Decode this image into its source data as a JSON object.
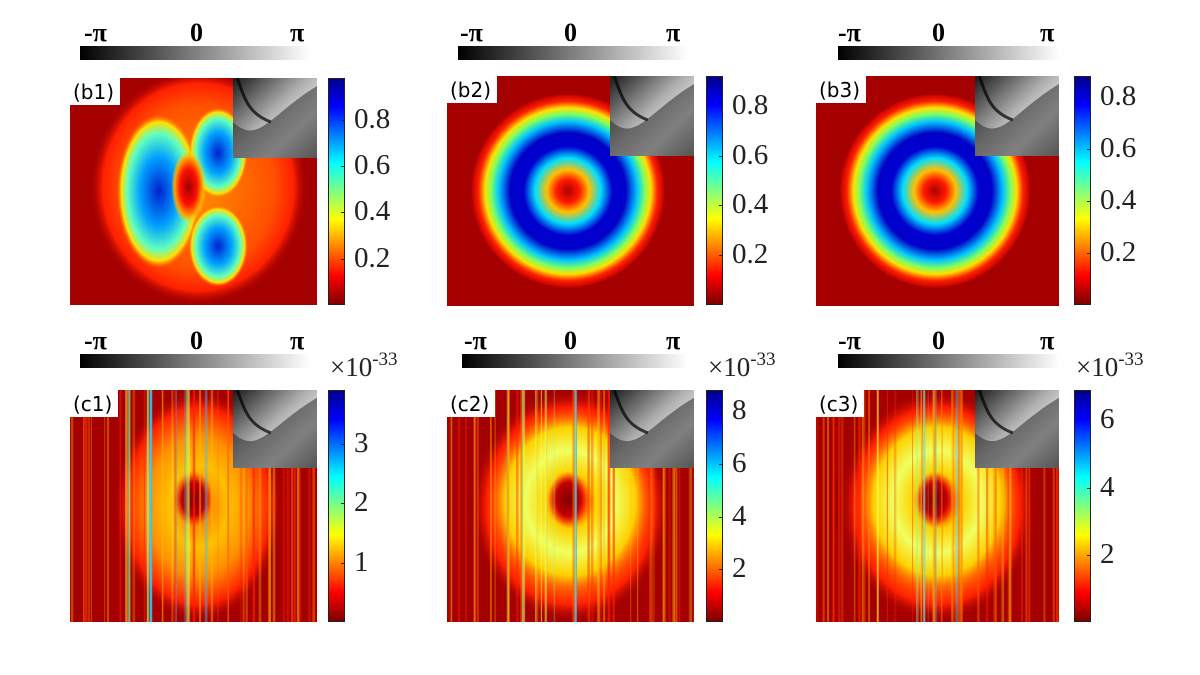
{
  "phase_labels": {
    "min": "-π",
    "mid": "0",
    "max": "π"
  },
  "jet_colors": [
    "#7f0000",
    "#ff0000",
    "#ff8000",
    "#ffff00",
    "#80ff80",
    "#00ffff",
    "#0080ff",
    "#0000ff",
    "#00008f"
  ],
  "chart_data": [
    {
      "type": "heatmap",
      "label": "(b1)",
      "pattern": "double-lobe",
      "colorbar_ticks": [
        "0.2",
        "0.4",
        "0.6",
        "0.8"
      ],
      "tick_values": [
        0.2,
        0.4,
        0.6,
        0.8
      ],
      "crange": [
        0,
        0.98
      ],
      "scale_exponent": null
    },
    {
      "type": "heatmap",
      "label": "(b2)",
      "pattern": "ring",
      "colorbar_ticks": [
        "0.2",
        "0.4",
        "0.6",
        "0.8"
      ],
      "tick_values": [
        0.2,
        0.4,
        0.6,
        0.8
      ],
      "crange": [
        0,
        0.92
      ],
      "scale_exponent": null
    },
    {
      "type": "heatmap",
      "label": "(b3)",
      "pattern": "ring",
      "colorbar_ticks": [
        "0.2",
        "0.4",
        "0.6",
        "0.8"
      ],
      "tick_values": [
        0.2,
        0.4,
        0.6,
        0.8
      ],
      "crange": [
        0,
        0.88
      ],
      "scale_exponent": null
    },
    {
      "type": "heatmap",
      "label": "(c1)",
      "pattern": "noisy-lobe",
      "colorbar_ticks": [
        "1",
        "2",
        "3"
      ],
      "tick_values": [
        1,
        2,
        3
      ],
      "crange": [
        0,
        3.9
      ],
      "scale_exponent": "-33"
    },
    {
      "type": "heatmap",
      "label": "(c2)",
      "pattern": "noisy-ring",
      "colorbar_ticks": [
        "2",
        "4",
        "6",
        "8"
      ],
      "tick_values": [
        2,
        4,
        6,
        8
      ],
      "crange": [
        0,
        8.8
      ],
      "scale_exponent": "-33"
    },
    {
      "type": "heatmap",
      "label": "(c3)",
      "pattern": "noisy-ring",
      "colorbar_ticks": [
        "2",
        "4",
        "6"
      ],
      "tick_values": [
        2,
        4,
        6
      ],
      "crange": [
        0,
        6.9
      ],
      "scale_exponent": "-33"
    }
  ]
}
